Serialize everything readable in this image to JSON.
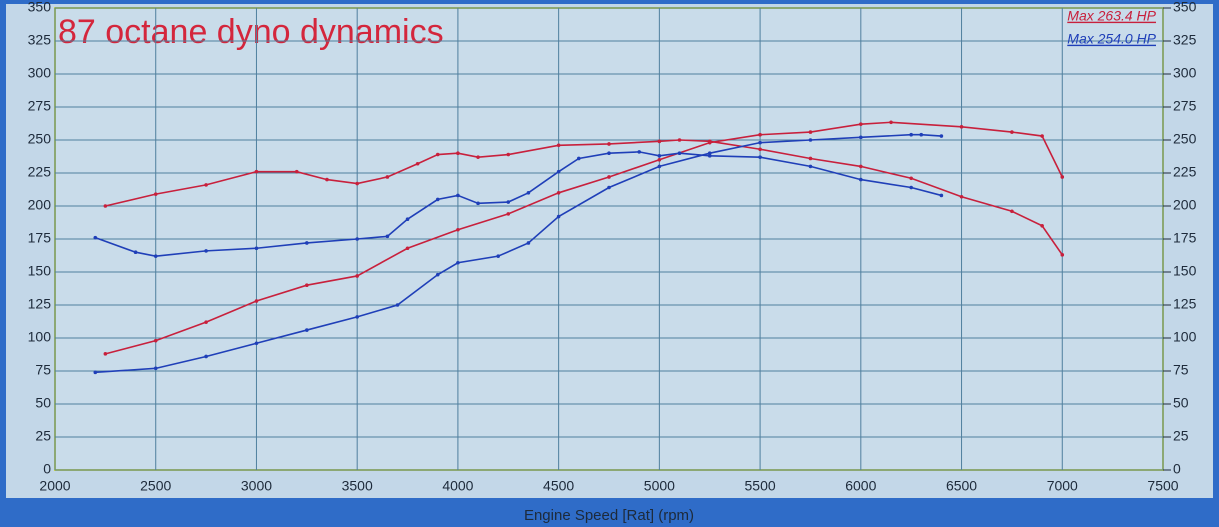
{
  "chart_data": {
    "type": "line",
    "title": "87 octane  dyno dynamics",
    "x_label": "Engine Speed [Rat] (rpm)",
    "xlim": [
      2000,
      7500
    ],
    "xticks": [
      2000,
      2500,
      3000,
      3500,
      4000,
      4500,
      5000,
      5500,
      6000,
      6500,
      7000,
      7500
    ],
    "ylim": [
      0,
      350
    ],
    "yticks": [
      0,
      25,
      50,
      75,
      100,
      125,
      150,
      175,
      200,
      225,
      250,
      275,
      300,
      325,
      350
    ],
    "y2lim": [
      0,
      350
    ],
    "y2ticks": [
      0,
      25,
      50,
      75,
      100,
      125,
      150,
      175,
      200,
      225,
      250,
      275,
      300,
      325,
      350
    ],
    "grid": true,
    "legend": "top-right",
    "series": [
      {
        "name": "Max 263.4 HP",
        "color": "#c8203c",
        "x": [
          2250,
          2500,
          2750,
          3000,
          3250,
          3500,
          3750,
          4000,
          4250,
          4500,
          4750,
          5000,
          5250,
          5500,
          5750,
          6000,
          6150,
          6500,
          6750,
          6900,
          7000
        ],
        "values": [
          88,
          98,
          112,
          128,
          140,
          147,
          168,
          182,
          194,
          210,
          222,
          235,
          248,
          254,
          256,
          262,
          263.4,
          260,
          256,
          253,
          222
        ]
      },
      {
        "color": "#c8203c",
        "x": [
          2250,
          2500,
          2750,
          3000,
          3200,
          3350,
          3500,
          3650,
          3800,
          3900,
          4000,
          4100,
          4250,
          4500,
          4750,
          5000,
          5100,
          5250,
          5500,
          5750,
          6000,
          6250,
          6500,
          6750,
          6900,
          7000
        ],
        "values": [
          200,
          209,
          216,
          226,
          226,
          220,
          217,
          222,
          232,
          239,
          240,
          237,
          239,
          246,
          247,
          249,
          250,
          249,
          243,
          236,
          230,
          221,
          207,
          196,
          185,
          163
        ]
      },
      {
        "name": "Max 254.0 HP",
        "color": "#1f3fb8",
        "x": [
          2200,
          2500,
          2750,
          3000,
          3250,
          3500,
          3700,
          3900,
          4000,
          4200,
          4350,
          4500,
          4750,
          5000,
          5250,
          5500,
          5750,
          6000,
          6250,
          6300,
          6400
        ],
        "values": [
          74,
          77,
          86,
          96,
          106,
          116,
          125,
          148,
          157,
          162,
          172,
          192,
          214,
          230,
          240,
          248,
          250,
          252,
          254,
          254,
          253
        ]
      },
      {
        "color": "#1f3fb8",
        "x": [
          2200,
          2400,
          2500,
          2750,
          3000,
          3250,
          3500,
          3650,
          3750,
          3900,
          4000,
          4100,
          4250,
          4350,
          4500,
          4600,
          4750,
          4900,
          5000,
          5100,
          5250,
          5500,
          5750,
          6000,
          6250,
          6400
        ],
        "values": [
          176,
          165,
          162,
          166,
          168,
          172,
          175,
          177,
          190,
          205,
          208,
          202,
          203,
          210,
          226,
          236,
          240,
          241,
          238,
          240,
          238,
          237,
          230,
          220,
          214,
          208
        ]
      }
    ]
  }
}
